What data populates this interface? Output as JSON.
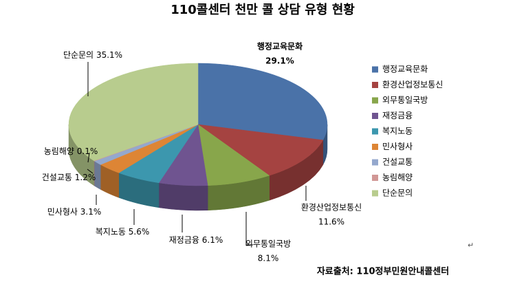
{
  "chart_data": {
    "type": "pie3d",
    "title": "110콜센터 천만 콜 상담 유형 현황",
    "categories": [
      "행정교육문화",
      "환경산업정보통신",
      "외무통일국방",
      "재정금융",
      "복지노동",
      "민사형사",
      "건설교통",
      "농림해양",
      "단순문의"
    ],
    "values": [
      29.1,
      11.6,
      8.1,
      6.1,
      5.6,
      3.1,
      1.2,
      0.1,
      35.1
    ],
    "value_labels": [
      "29.1%",
      "11.6%",
      "8.1%",
      "6.1%",
      "5.6%",
      "3.1%",
      "1.2%",
      "0.1%",
      "35.1%"
    ],
    "colors": [
      "#4a72a8",
      "#a54341",
      "#88a64b",
      "#6f5490",
      "#3c97ae",
      "#dd8535",
      "#94a8cd",
      "#d19795",
      "#b8cc8e"
    ],
    "legend": "right",
    "source": "자료출처: 110정부민원안내콜센터",
    "paragraph_mark": "↵"
  }
}
